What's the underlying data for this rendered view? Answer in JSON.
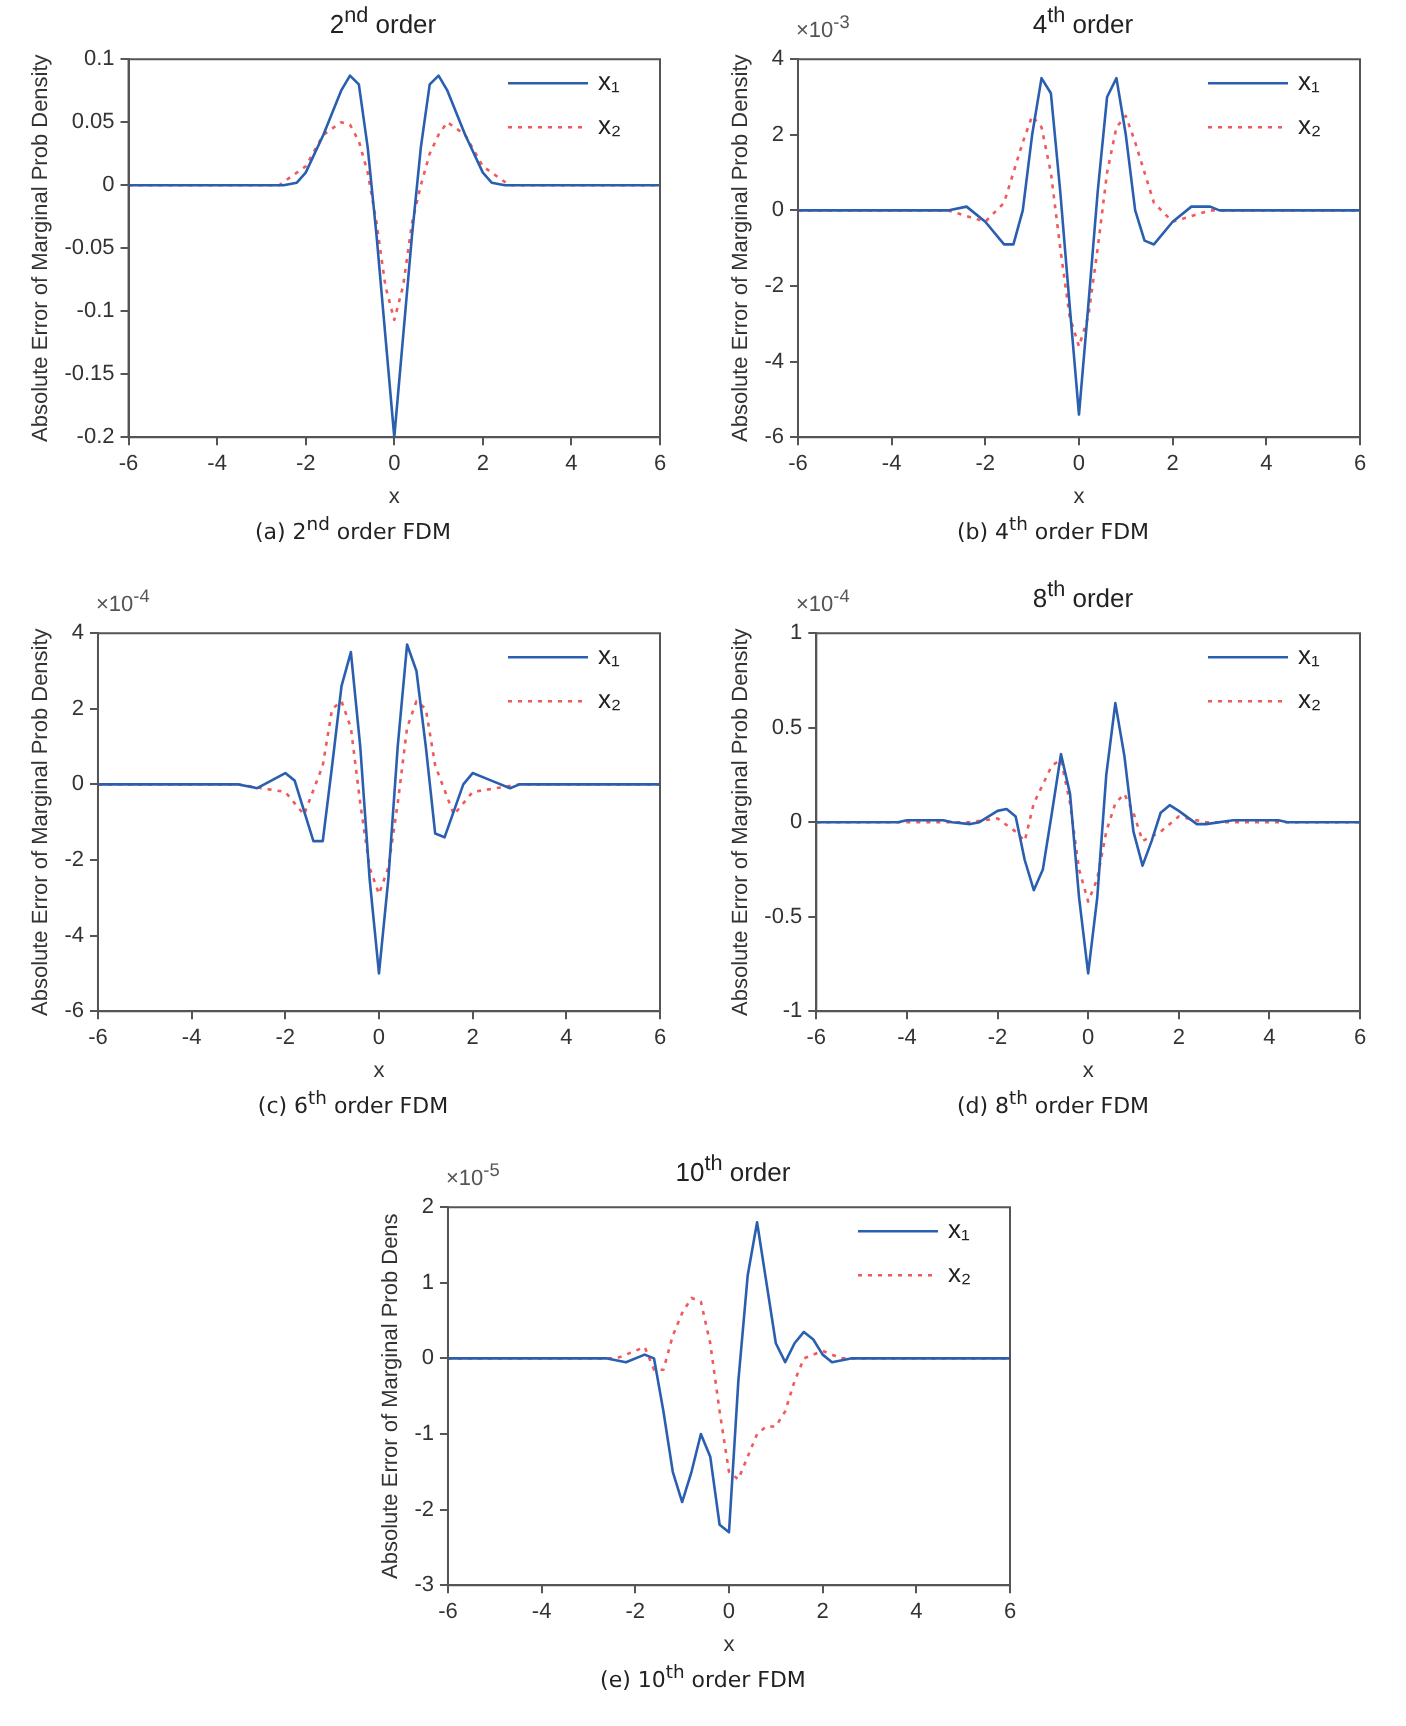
{
  "chart_data": [
    {
      "type": "line",
      "title": "2$^{nd}$ order",
      "xlabel": "x",
      "ylabel": "Absolute Error of Marginal Prob Density",
      "annotations": [
        "(a) 2$^{nd}$ order FDM"
      ],
      "xlim": [
        -6,
        6
      ],
      "xticks": [
        -6,
        -4,
        -2,
        0,
        2,
        4,
        6
      ],
      "ylim": [
        -0.2,
        0.1
      ],
      "yticks": [
        -0.2,
        -0.15,
        -0.1,
        -0.05,
        0,
        0.05,
        0.1
      ],
      "legend": "top right",
      "series": [
        {
          "name": "x₁",
          "color": "#2a5fb0",
          "line_style": "solid",
          "x": [
            -6,
            -2.5,
            -2.2,
            -2,
            -1.6,
            -1.2,
            -1,
            -0.8,
            -0.6,
            -0.4,
            -0.2,
            0,
            0.2,
            0.4,
            0.6,
            0.8,
            1,
            1.2,
            1.6,
            2,
            2.2,
            2.5,
            6
          ],
          "values": [
            0,
            0,
            0.002,
            0.01,
            0.04,
            0.075,
            0.087,
            0.08,
            0.03,
            -0.04,
            -0.12,
            -0.2,
            -0.12,
            -0.04,
            0.03,
            0.08,
            0.087,
            0.075,
            0.04,
            0.01,
            0.002,
            0,
            0
          ]
        },
        {
          "name": "x₂",
          "color": "#f05a5a",
          "line_style": "dotted",
          "x": [
            -6,
            -2.6,
            -2,
            -1.6,
            -1.2,
            -1,
            -0.8,
            -0.6,
            -0.4,
            -0.2,
            0,
            0.2,
            0.4,
            0.6,
            0.8,
            1,
            1.2,
            1.6,
            2,
            2.6,
            6
          ],
          "values": [
            0,
            0,
            0.015,
            0.04,
            0.05,
            0.048,
            0.035,
            0.01,
            -0.03,
            -0.08,
            -0.107,
            -0.08,
            -0.03,
            0,
            0.025,
            0.04,
            0.05,
            0.04,
            0.015,
            0,
            0
          ]
        }
      ]
    },
    {
      "type": "line",
      "title": "4$^{th}$ order",
      "xlabel": "x",
      "ylabel": "Absolute Error of Marginal Prob Density",
      "annotations": [
        "×10$^{-3}$",
        "(b) 4$^{th}$ order FDM"
      ],
      "xlim": [
        -6,
        6
      ],
      "xticks": [
        -6,
        -4,
        -2,
        0,
        2,
        4,
        6
      ],
      "ylim": [
        -6,
        4
      ],
      "yticks": [
        -6,
        -4,
        -2,
        0,
        2,
        4
      ],
      "legend": "top right",
      "series": [
        {
          "name": "x₁",
          "color": "#2a5fb0",
          "line_style": "solid",
          "x": [
            -6,
            -2.8,
            -2.4,
            -2,
            -1.6,
            -1.4,
            -1.2,
            -1,
            -0.8,
            -0.6,
            -0.4,
            -0.2,
            0,
            0.2,
            0.4,
            0.6,
            0.8,
            1,
            1.2,
            1.4,
            1.6,
            2,
            2.4,
            2.8,
            3,
            6
          ],
          "values": [
            0,
            0,
            0.1,
            -0.3,
            -0.9,
            -0.9,
            0,
            2,
            3.5,
            3.1,
            0.5,
            -2.5,
            -5.4,
            -2.5,
            0.5,
            3,
            3.5,
            2,
            0,
            -0.8,
            -0.9,
            -0.3,
            0.1,
            0.1,
            0,
            0
          ]
        },
        {
          "name": "x₂",
          "color": "#f05a5a",
          "line_style": "dotted",
          "x": [
            -6,
            -2.8,
            -2,
            -1.6,
            -1.2,
            -1,
            -0.8,
            -0.6,
            -0.4,
            -0.2,
            0,
            0.2,
            0.4,
            0.6,
            0.8,
            1,
            1.2,
            1.6,
            2,
            2.8,
            6
          ],
          "values": [
            0,
            0,
            -0.3,
            0.2,
            1.8,
            2.5,
            2.2,
            1,
            -1,
            -2.8,
            -3.6,
            -2.8,
            -1,
            1,
            2.2,
            2.5,
            1.8,
            0.2,
            -0.3,
            0,
            0
          ]
        }
      ]
    },
    {
      "type": "line",
      "xlabel": "x",
      "ylabel": "Absolute Error of Marginal Prob Density",
      "annotations": [
        "×10$^{-4}$",
        "(c) 6$^{th}$ order FDM"
      ],
      "xlim": [
        -6,
        6
      ],
      "xticks": [
        -6,
        -4,
        -2,
        0,
        2,
        4,
        6
      ],
      "ylim": [
        -6,
        4
      ],
      "yticks": [
        -6,
        -4,
        -2,
        0,
        2,
        4
      ],
      "legend": "top right",
      "series": [
        {
          "name": "x₁",
          "color": "#2a5fb0",
          "line_style": "solid",
          "x": [
            -6,
            -3,
            -2.6,
            -2,
            -1.8,
            -1.4,
            -1.2,
            -1,
            -0.8,
            -0.6,
            -0.4,
            -0.2,
            0,
            0.2,
            0.4,
            0.6,
            0.8,
            1,
            1.2,
            1.4,
            1.8,
            2,
            2.4,
            2.8,
            3,
            6
          ],
          "values": [
            0,
            0,
            -0.1,
            0.3,
            0.1,
            -1.5,
            -1.5,
            0.5,
            2.6,
            3.5,
            1,
            -2.5,
            -5,
            -2.5,
            1,
            3.7,
            3,
            1,
            -1.3,
            -1.4,
            0,
            0.3,
            0.1,
            -0.1,
            0,
            0
          ]
        },
        {
          "name": "x₂",
          "color": "#f05a5a",
          "line_style": "dotted",
          "x": [
            -6,
            -3,
            -2,
            -1.6,
            -1.2,
            -1,
            -0.8,
            -0.6,
            -0.4,
            -0.2,
            0,
            0.2,
            0.4,
            0.6,
            0.8,
            1,
            1.2,
            1.6,
            2,
            3,
            6
          ],
          "values": [
            0,
            0,
            -0.2,
            -0.8,
            0.5,
            2,
            2.2,
            1.5,
            -0.5,
            -2.2,
            -2.9,
            -2.2,
            -0.5,
            1.5,
            2.2,
            2,
            0.5,
            -0.8,
            -0.2,
            0,
            0
          ]
        }
      ]
    },
    {
      "type": "line",
      "title": "8$^{th}$ order",
      "xlabel": "x",
      "ylabel": "Absolute Error of Marginal Prob Density",
      "annotations": [
        "×10$^{-4}$",
        "(d) 8$^{th}$ order FDM"
      ],
      "xlim": [
        -6,
        6
      ],
      "xticks": [
        -6,
        -4,
        -2,
        0,
        2,
        4,
        6
      ],
      "ylim": [
        -1,
        1
      ],
      "yticks": [
        -1,
        -0.5,
        0,
        0.5,
        1
      ],
      "legend": "top right",
      "series": [
        {
          "name": "x₁",
          "color": "#2a5fb0",
          "line_style": "solid",
          "x": [
            -6,
            -4.2,
            -4,
            -3.2,
            -3,
            -2.6,
            -2.4,
            -2,
            -1.8,
            -1.6,
            -1.4,
            -1.2,
            -1,
            -0.8,
            -0.6,
            -0.4,
            -0.2,
            0,
            0.2,
            0.4,
            0.6,
            0.8,
            1,
            1.2,
            1.4,
            1.6,
            1.8,
            2,
            2.4,
            2.6,
            3.2,
            4.2,
            4.4,
            6
          ],
          "values": [
            0,
            0,
            0.01,
            0.01,
            0,
            -0.01,
            0,
            0.06,
            0.07,
            0.03,
            -0.2,
            -0.36,
            -0.25,
            0.05,
            0.36,
            0.15,
            -0.4,
            -0.8,
            -0.4,
            0.25,
            0.63,
            0.35,
            -0.05,
            -0.23,
            -0.1,
            0.05,
            0.09,
            0.06,
            -0.01,
            -0.01,
            0.01,
            0.01,
            0,
            0
          ]
        },
        {
          "name": "x₂",
          "color": "#f05a5a",
          "line_style": "dotted",
          "x": [
            -6,
            -2.6,
            -2,
            -1.6,
            -1.4,
            -1.2,
            -0.8,
            -0.6,
            -0.4,
            -0.2,
            0,
            0.2,
            0.4,
            0.6,
            0.8,
            1,
            1.2,
            1.6,
            2,
            2.6,
            6
          ],
          "values": [
            0,
            0,
            0.02,
            -0.05,
            -0.1,
            0.1,
            0.3,
            0.33,
            0.1,
            -0.25,
            -0.42,
            -0.3,
            -0.05,
            0.1,
            0.15,
            0.05,
            -0.1,
            -0.05,
            0.03,
            0,
            0
          ]
        }
      ]
    },
    {
      "type": "line",
      "title": "10$^{th}$ order",
      "xlabel": "x",
      "ylabel": "Absolute Error of Marginal Prob Dens",
      "annotations": [
        "×10$^{-5}$",
        "(e) 10$^{th}$ order FDM"
      ],
      "xlim": [
        -6,
        6
      ],
      "xticks": [
        -6,
        -4,
        -2,
        0,
        2,
        4,
        6
      ],
      "ylim": [
        -3,
        2
      ],
      "yticks": [
        -3,
        -2,
        -1,
        0,
        1,
        2
      ],
      "legend": "top right",
      "series": [
        {
          "name": "x₁",
          "color": "#2a5fb0",
          "line_style": "solid",
          "x": [
            -6,
            -2.6,
            -2.2,
            -1.8,
            -1.6,
            -1.4,
            -1.2,
            -1,
            -0.8,
            -0.6,
            -0.4,
            -0.2,
            0,
            0.2,
            0.4,
            0.6,
            0.8,
            1,
            1.2,
            1.4,
            1.6,
            1.8,
            2,
            2.2,
            2.6,
            6
          ],
          "values": [
            0,
            0,
            -0.05,
            0.05,
            0,
            -0.7,
            -1.5,
            -1.9,
            -1.5,
            -1,
            -1.3,
            -2.2,
            -2.3,
            -0.3,
            1.1,
            1.8,
            1,
            0.2,
            -0.05,
            0.2,
            0.35,
            0.25,
            0.05,
            -0.05,
            0,
            0
          ]
        },
        {
          "name": "x₂",
          "color": "#f05a5a",
          "line_style": "dotted",
          "x": [
            -6,
            -2.4,
            -2,
            -1.8,
            -1.6,
            -1.4,
            -1.2,
            -1,
            -0.8,
            -0.6,
            -0.4,
            -0.2,
            0,
            0.2,
            0.4,
            0.6,
            0.8,
            1,
            1.2,
            1.4,
            1.6,
            2,
            2.4,
            6
          ],
          "values": [
            0,
            0,
            0.1,
            0.15,
            -0.15,
            -0.15,
            0.3,
            0.6,
            0.8,
            0.75,
            0.2,
            -0.7,
            -1.5,
            -1.6,
            -1.3,
            -1,
            -0.9,
            -0.9,
            -0.7,
            -0.3,
            0,
            0.1,
            0,
            0
          ]
        }
      ]
    }
  ]
}
